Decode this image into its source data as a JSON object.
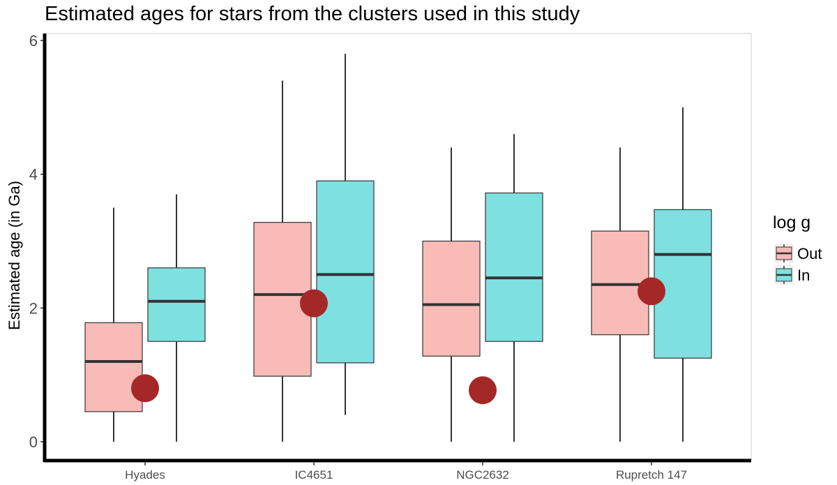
{
  "chart_data": {
    "type": "box",
    "title": "Estimated ages for stars from the clusters used in this study",
    "xlabel": "",
    "ylabel": "Estimated age (in Ga)",
    "ylim": [
      0,
      6
    ],
    "yticks": [
      "0",
      "2",
      "4",
      "6"
    ],
    "categories": [
      "Hyades",
      "IC4651",
      "NGC2632",
      "Rupretch 147"
    ],
    "legend": {
      "title": "log g",
      "position": "right",
      "entries": [
        {
          "label": "Out",
          "color": "#F8BBB7"
        },
        {
          "label": "In",
          "color": "#7FE0E1"
        }
      ]
    },
    "series": [
      {
        "name": "Out",
        "color": "#F8BBB7",
        "boxes": [
          {
            "min": 0.0,
            "q1": 0.45,
            "median": 1.2,
            "q3": 1.78,
            "max": 3.5
          },
          {
            "min": 0.0,
            "q1": 0.98,
            "median": 2.2,
            "q3": 3.28,
            "max": 5.4
          },
          {
            "min": 0.0,
            "q1": 1.28,
            "median": 2.05,
            "q3": 3.0,
            "max": 4.4
          },
          {
            "min": 0.0,
            "q1": 1.6,
            "median": 2.35,
            "q3": 3.15,
            "max": 4.4
          }
        ]
      },
      {
        "name": "In",
        "color": "#7FE0E1",
        "boxes": [
          {
            "min": 0.0,
            "q1": 1.5,
            "median": 2.1,
            "q3": 2.6,
            "max": 3.7
          },
          {
            "min": 0.4,
            "q1": 1.18,
            "median": 2.5,
            "q3": 3.9,
            "max": 5.8
          },
          {
            "min": 0.0,
            "q1": 1.5,
            "median": 2.45,
            "q3": 3.72,
            "max": 4.6
          },
          {
            "min": 0.0,
            "q1": 1.25,
            "median": 2.8,
            "q3": 3.47,
            "max": 5.0
          }
        ]
      }
    ],
    "points": {
      "color": "#A52828",
      "values": [
        0.8,
        2.07,
        0.77,
        2.25
      ]
    },
    "grid": false
  }
}
